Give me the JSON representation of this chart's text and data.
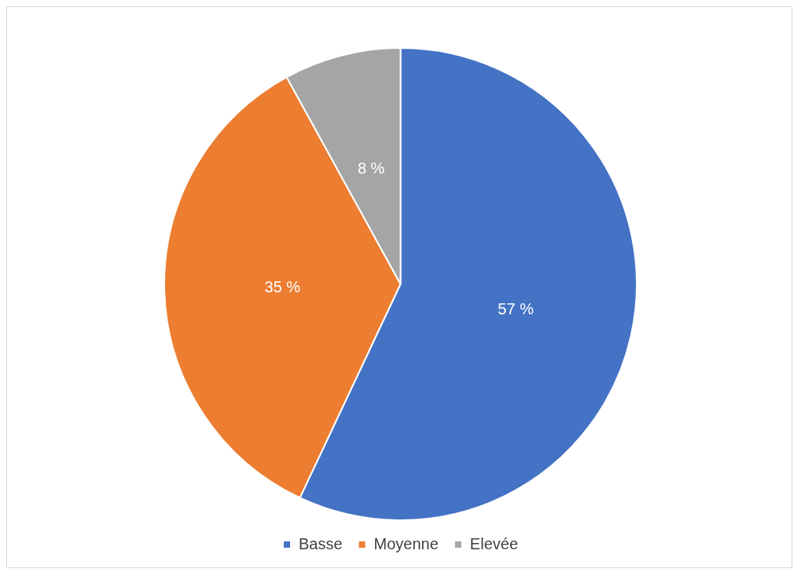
{
  "chart_data": {
    "type": "pie",
    "categories": [
      "Basse",
      "Moyenne",
      "Elevée"
    ],
    "values": [
      57,
      35,
      8
    ],
    "colors": [
      "#4472c4",
      "#ed7d31",
      "#a5a5a5"
    ],
    "value_labels": [
      "57 %",
      "35 %",
      "8 %"
    ],
    "legend": "bottom"
  }
}
